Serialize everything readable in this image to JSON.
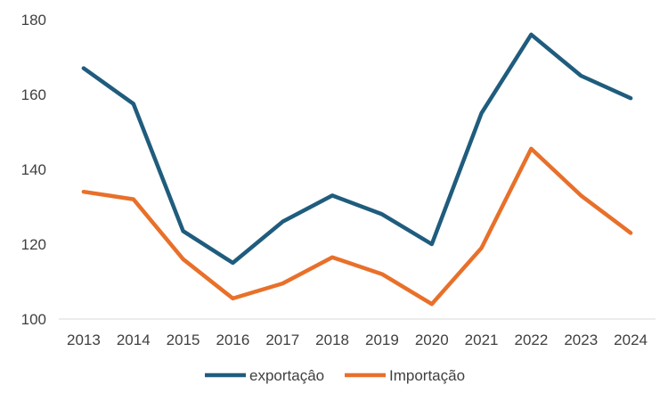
{
  "chart_data": {
    "type": "line",
    "title": "",
    "xlabel": "",
    "ylabel": "",
    "x": [
      "2013",
      "2014",
      "2015",
      "2016",
      "2017",
      "2018",
      "2019",
      "2020",
      "2021",
      "2022",
      "2023",
      "2024"
    ],
    "ylim": [
      100,
      180
    ],
    "yticks": [
      100,
      120,
      140,
      160,
      180
    ],
    "grid": false,
    "legend_position": "bottom",
    "series": [
      {
        "name": "exportaçâo",
        "color": "#1f5c7d",
        "values": [
          167,
          157.5,
          123.5,
          115,
          126,
          133,
          128,
          120,
          155,
          176,
          165,
          159
        ]
      },
      {
        "name": "Importação",
        "color": "#e8702a",
        "values": [
          134,
          132,
          116,
          105.5,
          109.5,
          116.5,
          112,
          104,
          119,
          145.5,
          133,
          123
        ]
      }
    ]
  }
}
